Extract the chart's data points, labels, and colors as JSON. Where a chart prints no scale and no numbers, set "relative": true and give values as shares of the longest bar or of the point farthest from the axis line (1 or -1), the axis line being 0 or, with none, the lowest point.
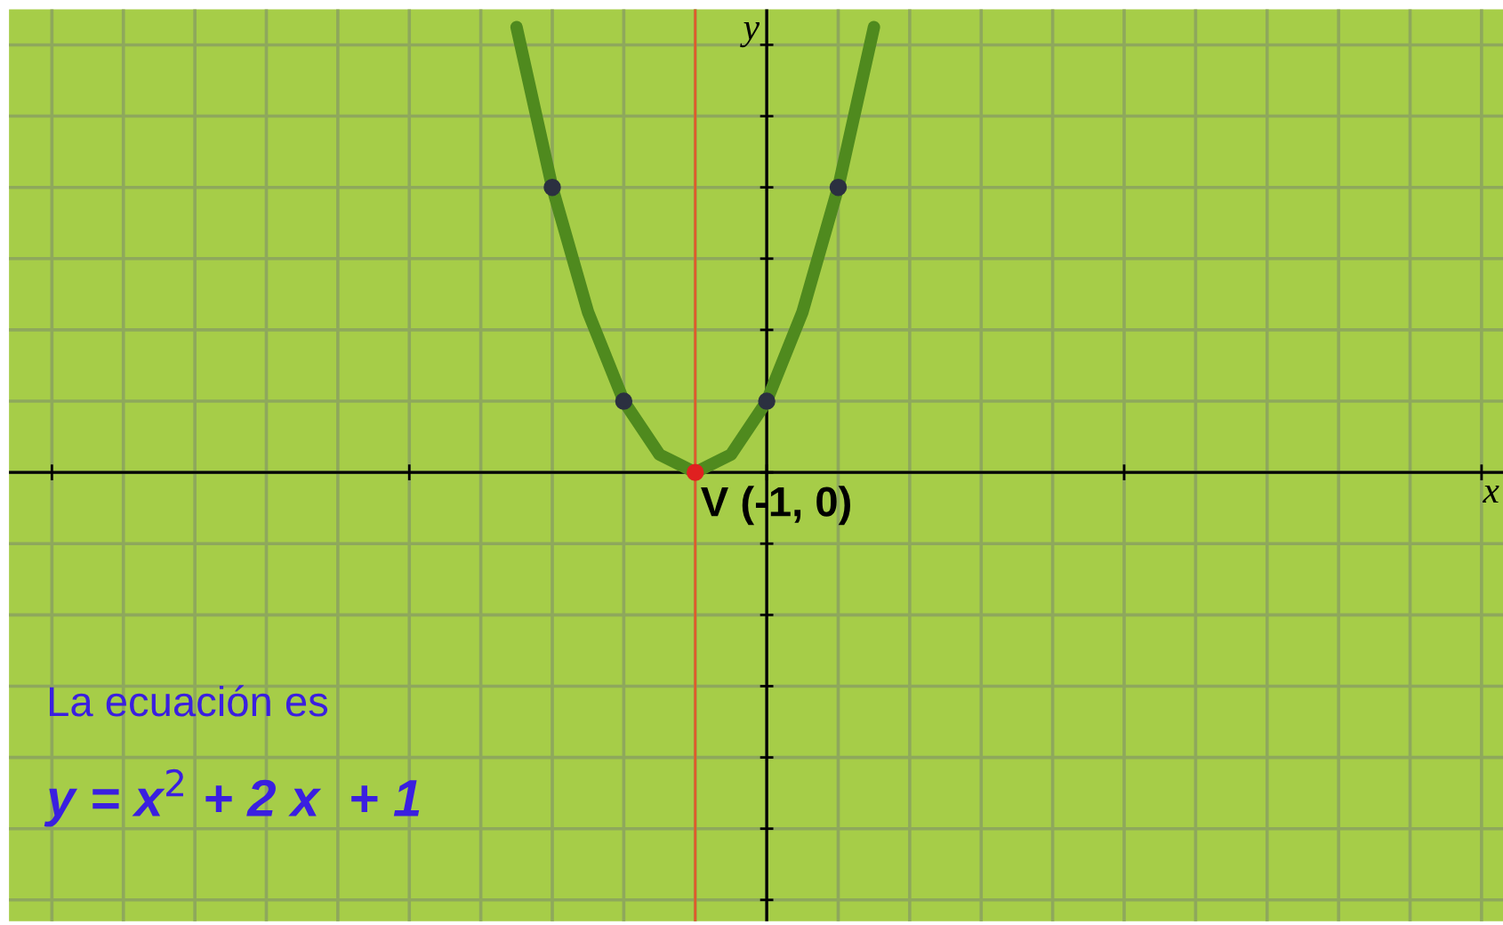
{
  "chart_data": {
    "type": "line",
    "relative": true,
    "grid": true,
    "categories": [
      null,
      null,
      null,
      null,
      null,
      null,
      null,
      null,
      null,
      null,
      null
    ],
    "series": [
      {
        "color": "#4f8a1e",
        "values": [
          1,
          0.64,
          0.36,
          0.16,
          0.04,
          0,
          0.04,
          0.16,
          0.36,
          0.64,
          1
        ],
        "colors": [
          null,
          "#2b3040",
          null,
          "#2b3040",
          null,
          "#e02020",
          null,
          "#2b3040",
          null,
          "#2b3040",
          null
        ]
      }
    ],
    "annotations": [
      "x",
      "y",
      "V (-1, 0)",
      "La ecuación es",
      "y = x$^{2}$ + 2 x  + 1"
    ]
  }
}
